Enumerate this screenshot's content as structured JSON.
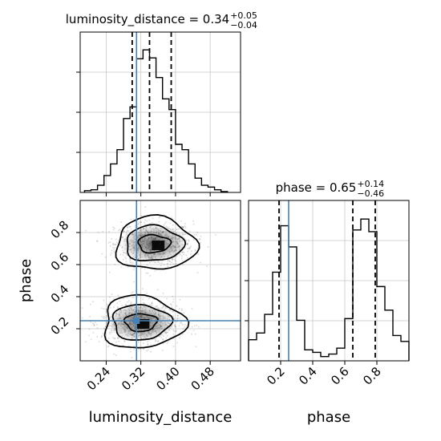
{
  "chart_data": [
    {
      "type": "histogram",
      "panel": "top-left",
      "parameter": "luminosity_distance",
      "title": {
        "base": "luminosity_distance = 0.34",
        "upper": "+0.05",
        "lower": "−0.04"
      },
      "xlim": [
        0.18,
        0.55
      ],
      "xticks": [
        0.24,
        0.32,
        0.4,
        0.48
      ],
      "bin_edges": [
        0.19,
        0.205,
        0.22,
        0.235,
        0.25,
        0.265,
        0.28,
        0.295,
        0.31,
        0.325,
        0.34,
        0.355,
        0.37,
        0.385,
        0.4,
        0.415,
        0.43,
        0.445,
        0.46,
        0.475,
        0.49,
        0.505,
        0.52
      ],
      "counts": [
        2,
        3,
        8,
        19,
        32,
        48,
        83,
        96,
        150,
        160,
        151,
        129,
        105,
        93,
        54,
        48,
        32,
        16,
        8,
        6,
        3,
        1
      ],
      "ymax": 180,
      "quantiles": [
        0.3,
        0.34,
        0.39
      ],
      "truth": 0.31,
      "grid": true
    },
    {
      "type": "histogram",
      "panel": "bottom-right",
      "parameter": "phase",
      "title": {
        "base": "phase = 0.65",
        "upper": "+0.14",
        "lower": "−0.46"
      },
      "xlim": [
        0.0,
        1.0
      ],
      "xticks": [
        0.2,
        0.4,
        0.6,
        0.8
      ],
      "xlabel": "phase",
      "bin_edges": [
        0.0,
        0.05,
        0.1,
        0.15,
        0.2,
        0.25,
        0.3,
        0.35,
        0.4,
        0.45,
        0.5,
        0.55,
        0.6,
        0.65,
        0.7,
        0.75,
        0.8,
        0.85,
        0.9,
        0.95,
        1.0
      ],
      "counts": [
        25,
        33,
        55,
        105,
        160,
        135,
        48,
        13,
        10,
        5,
        8,
        15,
        50,
        155,
        168,
        153,
        88,
        60,
        30,
        23
      ],
      "ymax": 190,
      "quantiles": [
        0.19,
        0.65,
        0.79
      ],
      "truth": 0.25,
      "grid": true
    },
    {
      "type": "contour2d",
      "panel": "bottom-left",
      "x_parameter": "luminosity_distance",
      "y_parameter": "phase",
      "xlim": [
        0.18,
        0.55
      ],
      "ylim": [
        0.0,
        1.0
      ],
      "xticks": [
        0.24,
        0.32,
        0.4,
        0.48
      ],
      "yticks": [
        0.2,
        0.4,
        0.6,
        0.8
      ],
      "xlabel": "luminosity_distance",
      "ylabel": "phase",
      "modes": [
        {
          "center": [
            0.35,
            0.73
          ],
          "peak": [
            0.36,
            0.72
          ]
        },
        {
          "center": [
            0.32,
            0.24
          ],
          "peak": [
            0.325,
            0.23
          ]
        }
      ],
      "truth": [
        0.31,
        0.25
      ],
      "grid": true
    }
  ],
  "colors": {
    "truth": "#4682b4",
    "hist": "#000000",
    "grid": "#c8c8c8",
    "density": "#000000"
  }
}
